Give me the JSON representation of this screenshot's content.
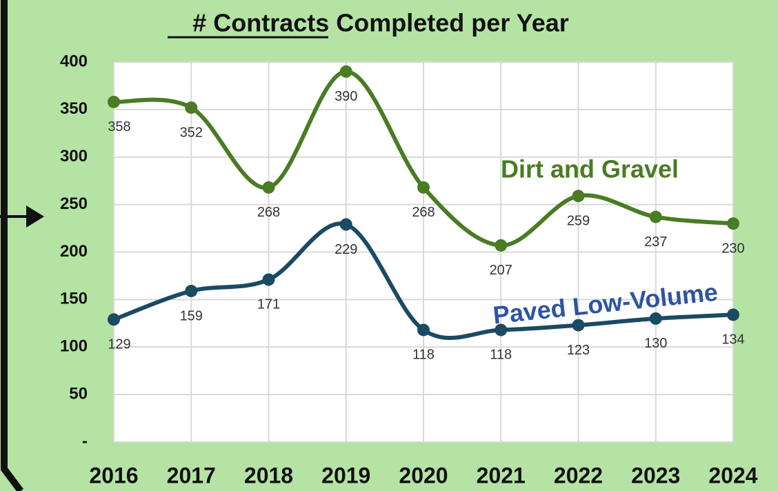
{
  "chart_data": {
    "type": "line",
    "title": "# Contracts Completed per Year",
    "categories": [
      "2016",
      "2017",
      "2018",
      "2019",
      "2020",
      "2021",
      "2022",
      "2023",
      "2024"
    ],
    "series": [
      {
        "name": "Dirt and Gravel",
        "color": "#4a7c23",
        "values": [
          358,
          352,
          268,
          390,
          268,
          207,
          259,
          237,
          230
        ]
      },
      {
        "name": "Paved Low-Volume",
        "color": "#1b4a63",
        "values": [
          129,
          159,
          171,
          229,
          118,
          118,
          123,
          130,
          134
        ]
      }
    ],
    "ylim": [
      0,
      400
    ],
    "yticks": [
      {
        "value": 0,
        "label": "-"
      },
      50,
      100,
      150,
      200,
      250,
      300,
      350,
      400
    ],
    "grid": true
  }
}
